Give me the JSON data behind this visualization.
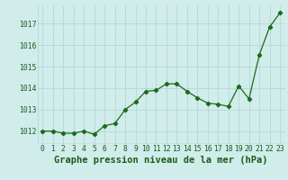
{
  "x": [
    0,
    1,
    2,
    3,
    4,
    5,
    6,
    7,
    8,
    9,
    10,
    11,
    12,
    13,
    14,
    15,
    16,
    17,
    18,
    19,
    20,
    21,
    22,
    23
  ],
  "y": [
    1012.0,
    1012.0,
    1011.9,
    1011.9,
    1012.0,
    1011.85,
    1012.25,
    1012.35,
    1013.0,
    1013.35,
    1013.85,
    1013.9,
    1014.2,
    1014.2,
    1013.85,
    1013.55,
    1013.3,
    1013.25,
    1013.15,
    1014.1,
    1013.5,
    1015.55,
    1016.85,
    1017.5
  ],
  "line_color": "#1a6b1a",
  "marker": "D",
  "marker_size": 2.2,
  "bg_color": "#d0eceb",
  "grid_color": "#b0d4d0",
  "xlabel": "Graphe pression niveau de la mer (hPa)",
  "xlabel_fontsize": 7.5,
  "xlabel_color": "#1a5c1a",
  "tick_color": "#1a5c1a",
  "tick_fontsize": 5.8,
  "ylim": [
    1011.4,
    1017.85
  ],
  "yticks": [
    1012,
    1013,
    1014,
    1015,
    1016,
    1017
  ],
  "xticks": [
    0,
    1,
    2,
    3,
    4,
    5,
    6,
    7,
    8,
    9,
    10,
    11,
    12,
    13,
    14,
    15,
    16,
    17,
    18,
    19,
    20,
    21,
    22,
    23
  ]
}
